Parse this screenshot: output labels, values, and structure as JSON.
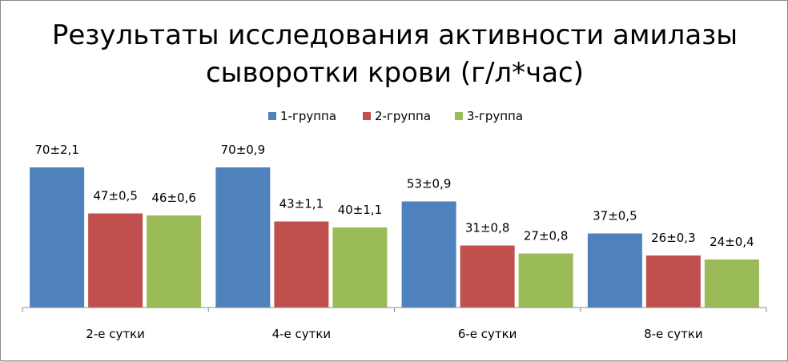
{
  "chart_data": {
    "type": "bar",
    "title_lines": [
      "Результаты исследования активности амилазы",
      "сыворотки крови (г/л*час)"
    ],
    "categories": [
      "2-е сутки",
      "4-е сутки",
      "6-е сутки",
      "8-е сутки"
    ],
    "series": [
      {
        "name": "1-группа",
        "color": "#4f81bd",
        "values": [
          70,
          70,
          53,
          37
        ],
        "labels": [
          "70±2,1",
          "70±0,9",
          "53±0,9",
          "37±0,5"
        ]
      },
      {
        "name": "2-группа",
        "color": "#c0504d",
        "values": [
          47,
          43,
          31,
          26
        ],
        "labels": [
          "47±0,5",
          "43±1,1",
          "31±0,8",
          "26±0,3"
        ]
      },
      {
        "name": "3-группа",
        "color": "#9bbb59",
        "values": [
          46,
          40,
          27,
          24
        ],
        "labels": [
          "46±0,6",
          "40±1,1",
          "27±0,8",
          "24±0,4"
        ]
      }
    ],
    "xlabel": "",
    "ylabel": "",
    "ylim": [
      0,
      70
    ],
    "legend_position": "top",
    "grid": false,
    "y_axis_visible": false
  }
}
